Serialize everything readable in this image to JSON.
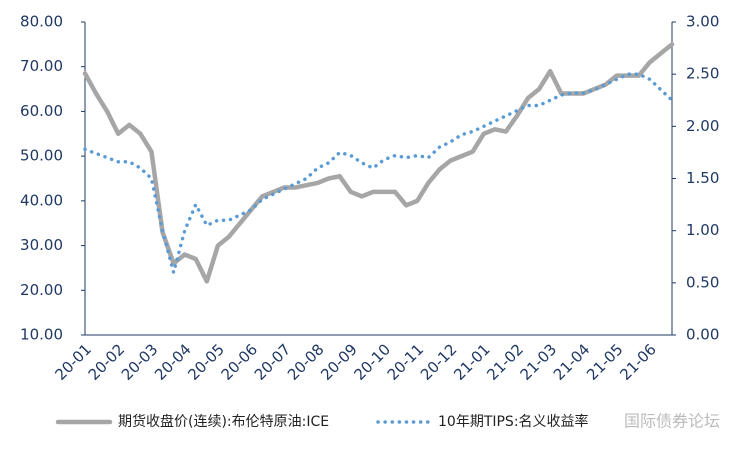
{
  "chart_data": {
    "type": "line",
    "categories": [
      "20-01",
      null,
      null,
      "20-02",
      null,
      null,
      "20-03",
      null,
      null,
      "20-04",
      null,
      null,
      "20-05",
      null,
      null,
      "20-06",
      null,
      null,
      "20-07",
      null,
      null,
      "20-08",
      null,
      null,
      "20-09",
      null,
      null,
      "20-10",
      null,
      null,
      "20-11",
      null,
      null,
      "20-12",
      null,
      null,
      "21-01",
      null,
      null,
      "21-02",
      null,
      null,
      "21-03",
      null,
      null,
      "21-04",
      null,
      null,
      "21-05",
      null,
      null,
      "21-06",
      null,
      null
    ],
    "series": [
      {
        "name": "期货收盘价(连续):布伦特原油:ICE",
        "color": "#a6a6a6",
        "axis": "y",
        "values": [
          68.5,
          64,
          60,
          55,
          57,
          55,
          51,
          33,
          26,
          28,
          27,
          22,
          30,
          32,
          35,
          38,
          41,
          42,
          43,
          43,
          43.5,
          44,
          45,
          45.5,
          42,
          41,
          42,
          42,
          42,
          39,
          40,
          44,
          47,
          49,
          50,
          51,
          55,
          56,
          55.5,
          59,
          63,
          65,
          69,
          64,
          64,
          64,
          65,
          66,
          68,
          68,
          68,
          71,
          73,
          75
        ]
      },
      {
        "name": "10年期TIPS:名义收益率",
        "color": "#5b9bd5",
        "axis": "y2",
        "values": [
          1.78,
          1.74,
          1.7,
          1.66,
          1.66,
          1.6,
          1.5,
          1.0,
          0.6,
          1.0,
          1.25,
          1.05,
          1.1,
          1.1,
          1.15,
          1.2,
          1.3,
          1.35,
          1.4,
          1.45,
          1.5,
          1.6,
          1.65,
          1.75,
          1.72,
          1.65,
          1.6,
          1.68,
          1.72,
          1.7,
          1.72,
          1.7,
          1.8,
          1.85,
          1.92,
          1.95,
          2.0,
          2.05,
          2.1,
          2.15,
          2.2,
          2.2,
          2.25,
          2.3,
          2.32,
          2.32,
          2.35,
          2.4,
          2.45,
          2.5,
          2.5,
          2.45,
          2.35,
          2.25
        ]
      }
    ],
    "ylim": [
      10,
      80
    ],
    "yticks": [
      {
        "value": 10,
        "label": "10.00"
      },
      {
        "value": 20,
        "label": "20.00"
      },
      {
        "value": 30,
        "label": "30.00"
      },
      {
        "value": 40,
        "label": "40.00"
      },
      {
        "value": 50,
        "label": "50.00"
      },
      {
        "value": 60,
        "label": "60.00"
      },
      {
        "value": 70,
        "label": "70.00"
      },
      {
        "value": 80,
        "label": "80.00"
      }
    ],
    "y2lim": [
      0,
      3
    ],
    "y2ticks": [
      {
        "value": 0,
        "label": "0.00"
      },
      {
        "value": 0.5,
        "label": "0.50"
      },
      {
        "value": 1,
        "label": "1.00"
      },
      {
        "value": 1.5,
        "label": "1.50"
      },
      {
        "value": 2,
        "label": "2.00"
      },
      {
        "value": 2.5,
        "label": "2.50"
      },
      {
        "value": 3,
        "label": "3.00"
      }
    ],
    "watermark": "国际债券论坛"
  }
}
